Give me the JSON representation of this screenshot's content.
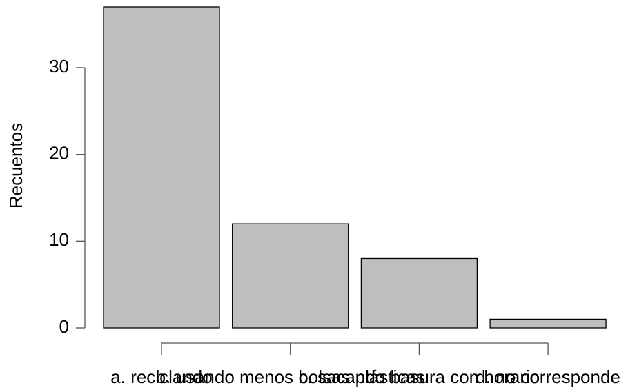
{
  "chart_data": {
    "type": "bar",
    "y_label": "Recuentos",
    "categories": [
      "a. reciclando",
      "b. usando menos bolsas plásticas",
      "c. sacando basura con horario",
      "d. no corresponde"
    ],
    "values": [
      37,
      12,
      8,
      1
    ],
    "color": "#bebebe",
    "ylim": [
      0,
      37
    ],
    "yticks": [
      0,
      10,
      20,
      30
    ],
    "grid": false
  }
}
